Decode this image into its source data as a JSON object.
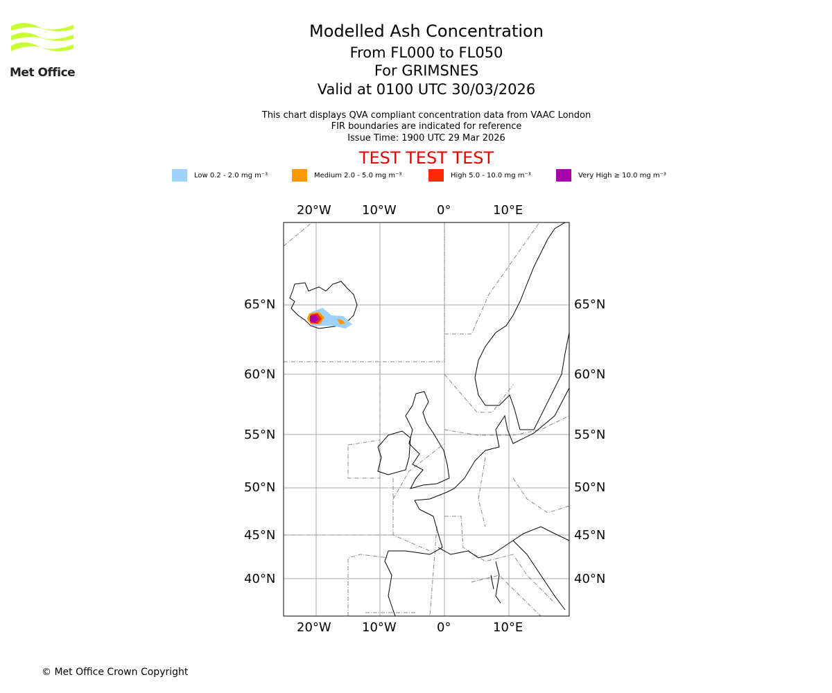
{
  "logo": {
    "text": "Met Office",
    "color": "#c8ff32"
  },
  "title": {
    "main": "Modelled Ash Concentration",
    "levels": "From FL000 to FL050",
    "volcano": "For GRIMSNES",
    "valid": "Valid at 0100 UTC 30/03/2026"
  },
  "info": {
    "line1": "This chart displays QVA compliant concentration data from VAAC London",
    "line2": "FIR boundaries are indicated for reference",
    "issue": "Issue Time: 1900 UTC 29 Mar 2026"
  },
  "test_banner": {
    "text": "TEST TEST TEST",
    "color": "#e60000"
  },
  "legend": [
    {
      "label": "Low 0.2 - 2.0 mg m⁻³",
      "color": "#a0d2ff"
    },
    {
      "label": "Medium 2.0 - 5.0 mg m⁻³",
      "color": "#ff9900"
    },
    {
      "label": "High 5.0 - 10.0 mg m⁻³",
      "color": "#ff2800"
    },
    {
      "label": "Very High ≥ 10.0 mg m⁻³",
      "color": "#aa00aa"
    }
  ],
  "map": {
    "lon_labels": [
      "20°W",
      "10°W",
      "0°",
      "10°E"
    ],
    "lat_labels": [
      "65°N",
      "60°N",
      "55°N",
      "50°N",
      "45°N",
      "40°N"
    ]
  },
  "footer": {
    "copyright": "© Met Office Crown Copyright"
  }
}
